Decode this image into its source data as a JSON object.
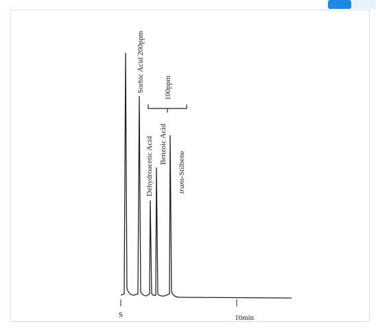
{
  "figure": {
    "peaks": [
      {
        "label": "Sorbic  Acid 200ppm"
      },
      {
        "label": "Dehydroacetic  Acid"
      },
      {
        "label": "Benzoic Acid"
      },
      {
        "label_italic": "trans",
        "label": "-Stilbene"
      }
    ],
    "group_label": "100ppm",
    "start_label": "S",
    "time_label": "10min"
  }
}
